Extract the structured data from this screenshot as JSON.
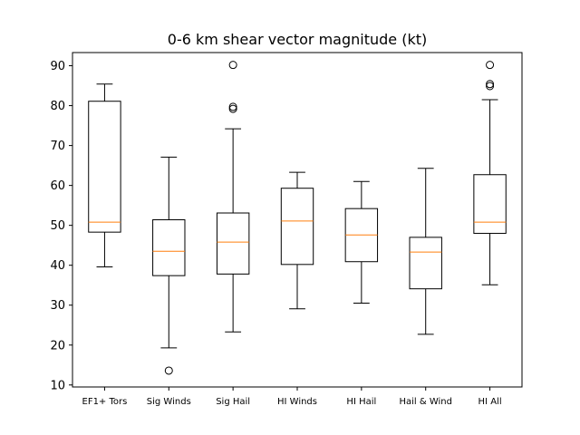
{
  "chart_data": {
    "type": "box",
    "title": "0-6 km shear vector magnitude (kt)",
    "xlabel": "",
    "ylabel": "",
    "ylim": [
      9.5,
      93.3
    ],
    "yticks": [
      10,
      20,
      30,
      40,
      50,
      60,
      70,
      80,
      90
    ],
    "grid": false,
    "colors": {
      "box": "#000000",
      "median": "#ff7f0e",
      "background": "#ffffff"
    },
    "categories": [
      "EF1+ Tors",
      "Sig Winds",
      "Sig Hail",
      "HI Winds",
      "HI Hail",
      "Hail & Wind",
      "HI All"
    ],
    "boxes": [
      {
        "whislo": 39.6,
        "q1": 48.3,
        "med": 50.8,
        "q3": 81.1,
        "whishi": 85.4,
        "fliers": []
      },
      {
        "whislo": 19.3,
        "q1": 37.4,
        "med": 43.5,
        "q3": 51.4,
        "whishi": 67.1,
        "fliers": [
          13.6
        ]
      },
      {
        "whislo": 23.3,
        "q1": 37.8,
        "med": 45.8,
        "q3": 53.1,
        "whishi": 74.2,
        "fliers": [
          79.2,
          79.7,
          90.2
        ]
      },
      {
        "whislo": 29.1,
        "q1": 40.2,
        "med": 51.1,
        "q3": 59.3,
        "whishi": 63.3,
        "fliers": []
      },
      {
        "whislo": 30.5,
        "q1": 40.9,
        "med": 47.6,
        "q3": 54.2,
        "whishi": 61.0,
        "fliers": []
      },
      {
        "whislo": 22.7,
        "q1": 34.1,
        "med": 43.3,
        "q3": 47.0,
        "whishi": 64.3,
        "fliers": []
      },
      {
        "whislo": 35.1,
        "q1": 48.0,
        "med": 50.8,
        "q3": 62.7,
        "whishi": 81.5,
        "fliers": [
          84.9,
          85.4,
          90.2
        ]
      }
    ]
  }
}
